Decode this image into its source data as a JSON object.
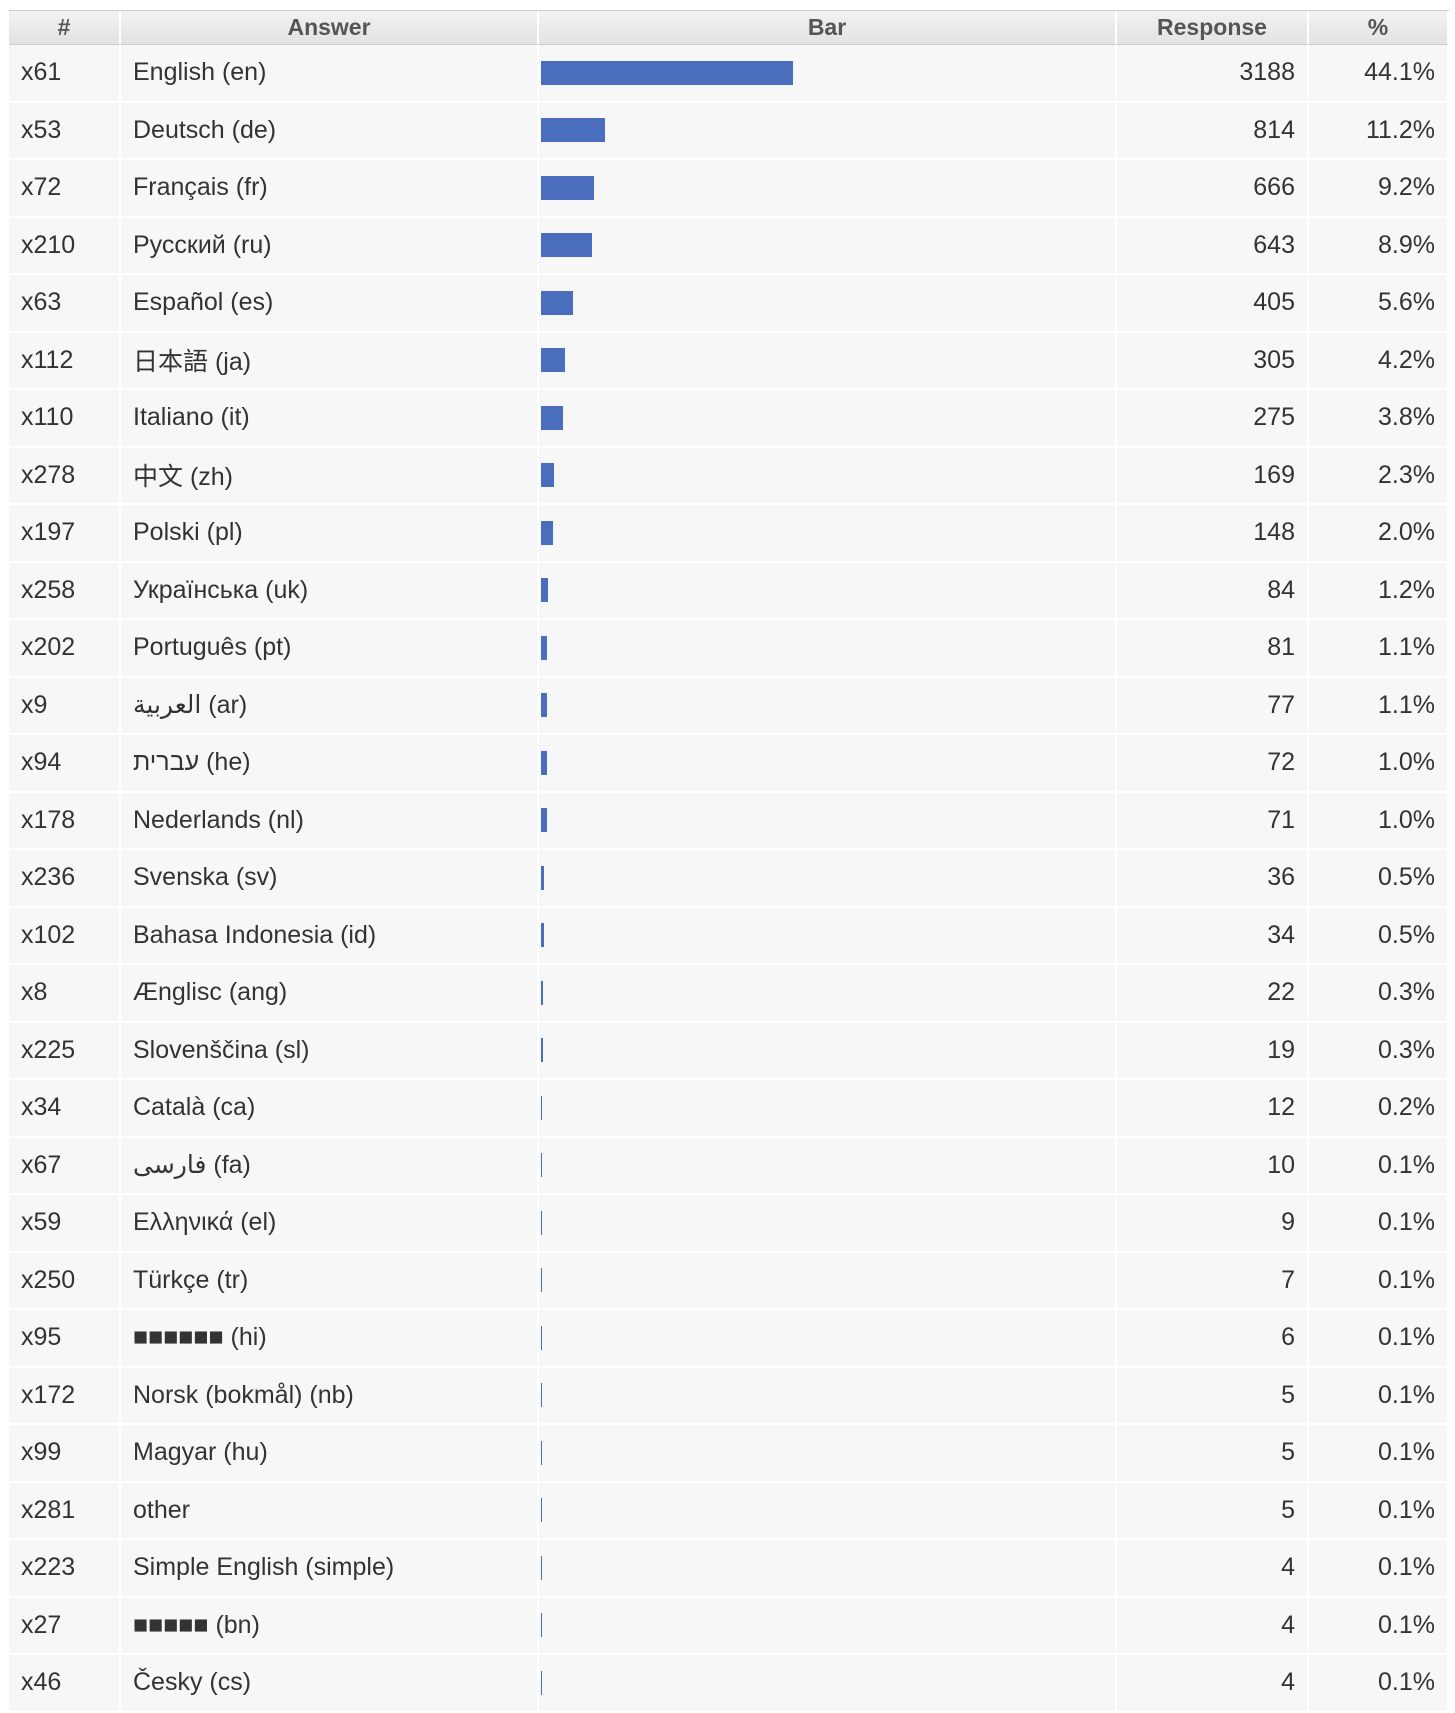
{
  "table": {
    "header": [
      "#",
      "Answer",
      "Bar",
      "Response",
      "%"
    ],
    "rows": [
      [
        "x61",
        "English (en)",
        3188,
        "44.1%"
      ],
      [
        "x53",
        "Deutsch (de)",
        814,
        "11.2%"
      ],
      [
        "x72",
        "Français (fr)",
        666,
        "9.2%"
      ],
      [
        "x210",
        "Русский (ru)",
        643,
        "8.9%"
      ],
      [
        "x63",
        "Español (es)",
        405,
        "5.6%"
      ],
      [
        "x112",
        "日本語 (ja)",
        305,
        "4.2%"
      ],
      [
        "x110",
        "Italiano (it)",
        275,
        "3.8%"
      ],
      [
        "x278",
        "中文 (zh)",
        169,
        "2.3%"
      ],
      [
        "x197",
        "Polski (pl)",
        148,
        "2.0%"
      ],
      [
        "x258",
        "Українська (uk)",
        84,
        "1.2%"
      ],
      [
        "x202",
        "Português (pt)",
        81,
        "1.1%"
      ],
      [
        "x9",
        "العربية (ar)",
        77,
        "1.1%"
      ],
      [
        "x94",
        "עברית (he)",
        72,
        "1.0%"
      ],
      [
        "x178",
        "Nederlands (nl)",
        71,
        "1.0%"
      ],
      [
        "x236",
        "Svenska (sv)",
        36,
        "0.5%"
      ],
      [
        "x102",
        "Bahasa Indonesia (id)",
        34,
        "0.5%"
      ],
      [
        "x8",
        "Ænglisc (ang)",
        22,
        "0.3%"
      ],
      [
        "x225",
        "Slovenščina (sl)",
        19,
        "0.3%"
      ],
      [
        "x34",
        "Català (ca)",
        12,
        "0.2%"
      ],
      [
        "x67",
        "فارسی (fa)",
        10,
        "0.1%"
      ],
      [
        "x59",
        "Ελληνικά (el)",
        9,
        "0.1%"
      ],
      [
        "x250",
        "Türkçe (tr)",
        7,
        "0.1%"
      ],
      [
        "x95",
        "■■■■■■ (hi)",
        6,
        "0.1%"
      ],
      [
        "x172",
        "Norsk (bokmål) (nb)",
        5,
        "0.1%"
      ],
      [
        "x99",
        "Magyar (hu)",
        5,
        "0.1%"
      ],
      [
        "x281",
        "other",
        5,
        "0.1%"
      ],
      [
        "x223",
        "Simple English (simple)",
        4,
        "0.1%"
      ],
      [
        "x27",
        "■■■■■ (bn)",
        4,
        "0.1%"
      ],
      [
        "x46",
        "Česky (cs)",
        4,
        "0.1%"
      ]
    ]
  }
}
